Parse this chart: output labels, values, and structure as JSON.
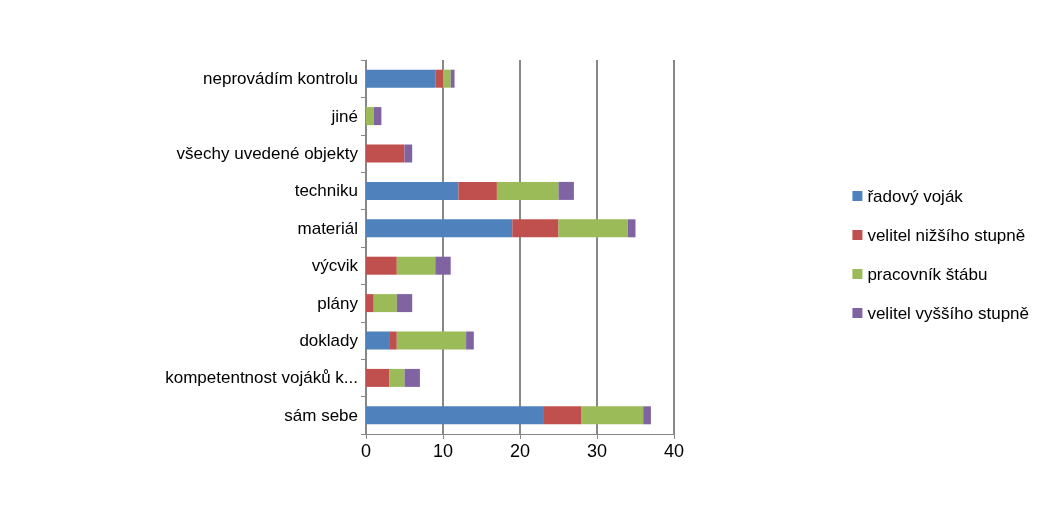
{
  "chart_data": {
    "type": "bar",
    "orientation": "horizontal",
    "stacked": true,
    "categories": [
      "neprovádím kontrolu",
      "jiné",
      "všechy uvedené objekty",
      "techniku",
      "materiál",
      "výcvik",
      "plány",
      "doklady",
      "kompetentnost vojáků k...",
      "sám sebe"
    ],
    "series": [
      {
        "name": "řadový voják",
        "color": "#4f81bd",
        "values": [
          9,
          0,
          0,
          12,
          19,
          0,
          0,
          3,
          0,
          23
        ]
      },
      {
        "name": "velitel nižšího stupně",
        "color": "#c0504d",
        "values": [
          1,
          0,
          5,
          5,
          6,
          4,
          1,
          1,
          3,
          5
        ]
      },
      {
        "name": "pracovník štábu",
        "color": "#9bbb59",
        "values": [
          1,
          1,
          0,
          8,
          9,
          5,
          3,
          9,
          2,
          8
        ]
      },
      {
        "name": "velitel vyššího stupně",
        "color": "#8064a2",
        "values": [
          0.5,
          1,
          1,
          2,
          1,
          2,
          2,
          1,
          2,
          1
        ]
      }
    ],
    "xlim": [
      0,
      40
    ],
    "xticks": [
      0,
      10,
      20,
      30,
      40
    ],
    "grid": "x",
    "legend": "right"
  }
}
